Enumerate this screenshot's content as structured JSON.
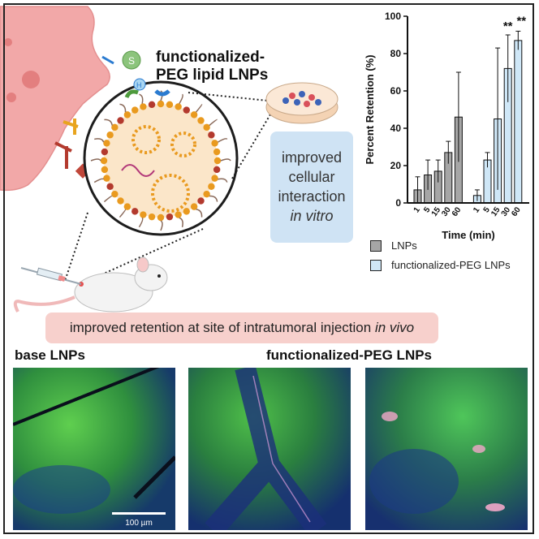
{
  "header": {
    "title_line1": "functionalized-",
    "title_line2": "PEG lipid LNPs",
    "h_badge": "H"
  },
  "in_vitro": {
    "line1": "improved",
    "line2": "cellular",
    "line3": "interaction",
    "line4": "in vitro"
  },
  "in_vivo": {
    "text": "improved retention at site of intratumoral injection ",
    "italic": "in vivo"
  },
  "panels": {
    "base_label": "base LNPs",
    "functional_label": "functionalized-PEG LNPs",
    "scale_bar": "100 µm"
  },
  "legend": {
    "item1": "LNPs",
    "item2": "functionalized-PEG LNPs"
  },
  "colors": {
    "lnp_bar": "#a6a6a6",
    "peg_bar": "#cfe7f7",
    "cell": "#f2a8a8",
    "in_vitro_box": "#cfe3f4",
    "in_vivo_box": "#f7d0cc",
    "micro_green": "#39b54a",
    "micro_blue": "#1a2f7a"
  },
  "chart_data": {
    "type": "bar",
    "xlabel": "Time (min)",
    "ylabel": "Percent Retention (%)",
    "ylim": [
      0,
      100
    ],
    "yticks": [
      0,
      20,
      40,
      60,
      80,
      100
    ],
    "categories": [
      "1",
      "5",
      "15",
      "30",
      "60"
    ],
    "series": [
      {
        "name": "LNPs",
        "values": [
          7,
          15,
          17,
          27,
          46
        ],
        "errors": [
          7,
          8,
          6,
          6,
          24
        ]
      },
      {
        "name": "functionalized-PEG LNPs",
        "values": [
          4,
          23,
          45,
          72,
          87
        ],
        "errors": [
          3,
          4,
          38,
          18,
          5
        ]
      }
    ],
    "annotations": [
      {
        "series": "functionalized-PEG LNPs",
        "category": "30",
        "text": "**"
      },
      {
        "series": "functionalized-PEG LNPs",
        "category": "60",
        "text": "**"
      }
    ]
  }
}
